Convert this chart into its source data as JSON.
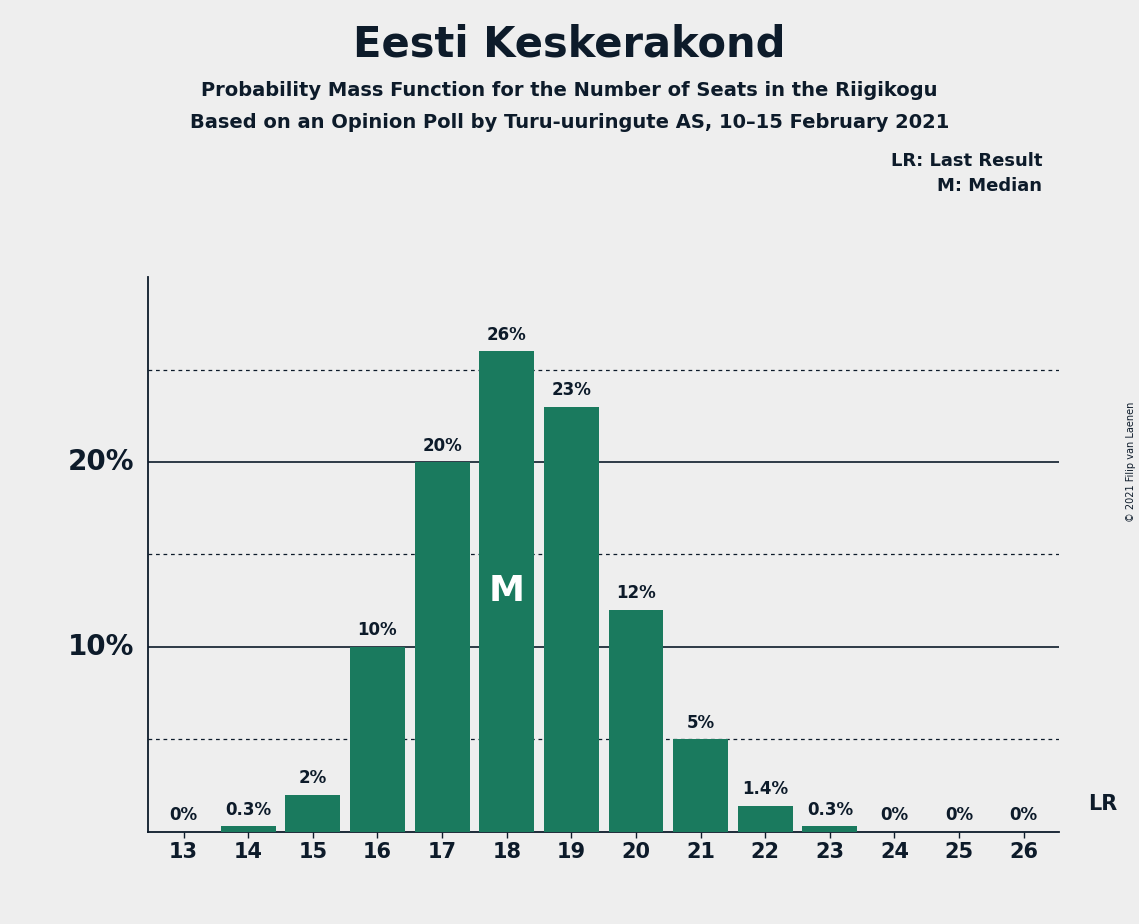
{
  "title": "Eesti Keskerakond",
  "subtitle1": "Probability Mass Function for the Number of Seats in the Riigikogu",
  "subtitle2": "Based on an Opinion Poll by Turu-uuringute AS, 10–15 February 2021",
  "copyright": "© 2021 Filip van Laenen",
  "seats": [
    13,
    14,
    15,
    16,
    17,
    18,
    19,
    20,
    21,
    22,
    23,
    24,
    25,
    26
  ],
  "probabilities": [
    0.0,
    0.3,
    2.0,
    10.0,
    20.0,
    26.0,
    23.0,
    12.0,
    5.0,
    1.4,
    0.3,
    0.0,
    0.0,
    0.0
  ],
  "labels": [
    "0%",
    "0.3%",
    "2%",
    "10%",
    "20%",
    "26%",
    "23%",
    "12%",
    "5%",
    "1.4%",
    "0.3%",
    "0%",
    "0%",
    "0%"
  ],
  "bar_color": "#1a7a5e",
  "median_seat": 18,
  "last_result_seat": 26,
  "background_color": "#eeeeee",
  "dotted_lines": [
    5.0,
    15.0,
    25.0
  ],
  "solid_lines": [
    10.0,
    20.0
  ],
  "ymax": 30,
  "title_fontsize": 30,
  "subtitle_fontsize": 14,
  "ylabel_fontsize": 20,
  "bar_label_fontsize": 12,
  "tick_fontsize": 15,
  "legend_fontsize": 13,
  "M_fontsize": 26
}
